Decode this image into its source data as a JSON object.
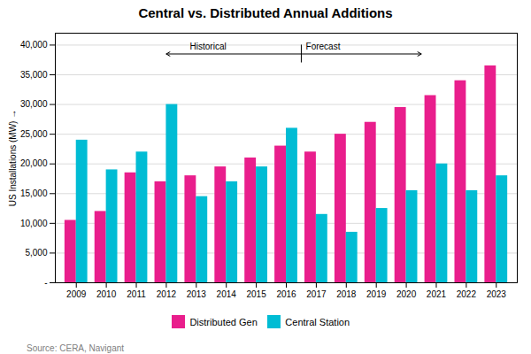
{
  "chart_data": {
    "type": "bar",
    "title": "Central vs. Distributed Annual Additions",
    "ylabel": "US Installations (MW)",
    "categories": [
      "2009",
      "2010",
      "2011",
      "2012",
      "2013",
      "2014",
      "2015",
      "2016",
      "2017",
      "2018",
      "2019",
      "2020",
      "2021",
      "2022",
      "2023"
    ],
    "series": [
      {
        "name": "Distributed Gen",
        "color": "#e91e8c",
        "values": [
          10500,
          12000,
          18500,
          17000,
          18000,
          19500,
          21000,
          23000,
          22000,
          25000,
          27000,
          29500,
          31500,
          34000,
          36500
        ]
      },
      {
        "name": "Central Station",
        "color": "#00bcd4",
        "values": [
          24000,
          19000,
          22000,
          30000,
          14500,
          17000,
          19500,
          26000,
          11500,
          8500,
          12500,
          15500,
          20000,
          15500,
          18000
        ]
      }
    ],
    "ylim": [
      0,
      42000
    ],
    "yticks": [
      {
        "value": 0,
        "label": "-"
      },
      {
        "value": 5000,
        "label": "5,000"
      },
      {
        "value": 10000,
        "label": "10,000"
      },
      {
        "value": 15000,
        "label": "15,000"
      },
      {
        "value": 20000,
        "label": "20,000"
      },
      {
        "value": 25000,
        "label": "25,000"
      },
      {
        "value": 30000,
        "label": "30,000"
      },
      {
        "value": 35000,
        "label": "35,000"
      },
      {
        "value": 40000,
        "label": "40,000"
      }
    ],
    "grid": true,
    "legend": "bottom",
    "annotations": [
      {
        "text": "Historical",
        "category": "2016"
      },
      {
        "text": "Forecast",
        "category": "2017"
      }
    ],
    "caption": "Source: CERA, Navigant"
  }
}
